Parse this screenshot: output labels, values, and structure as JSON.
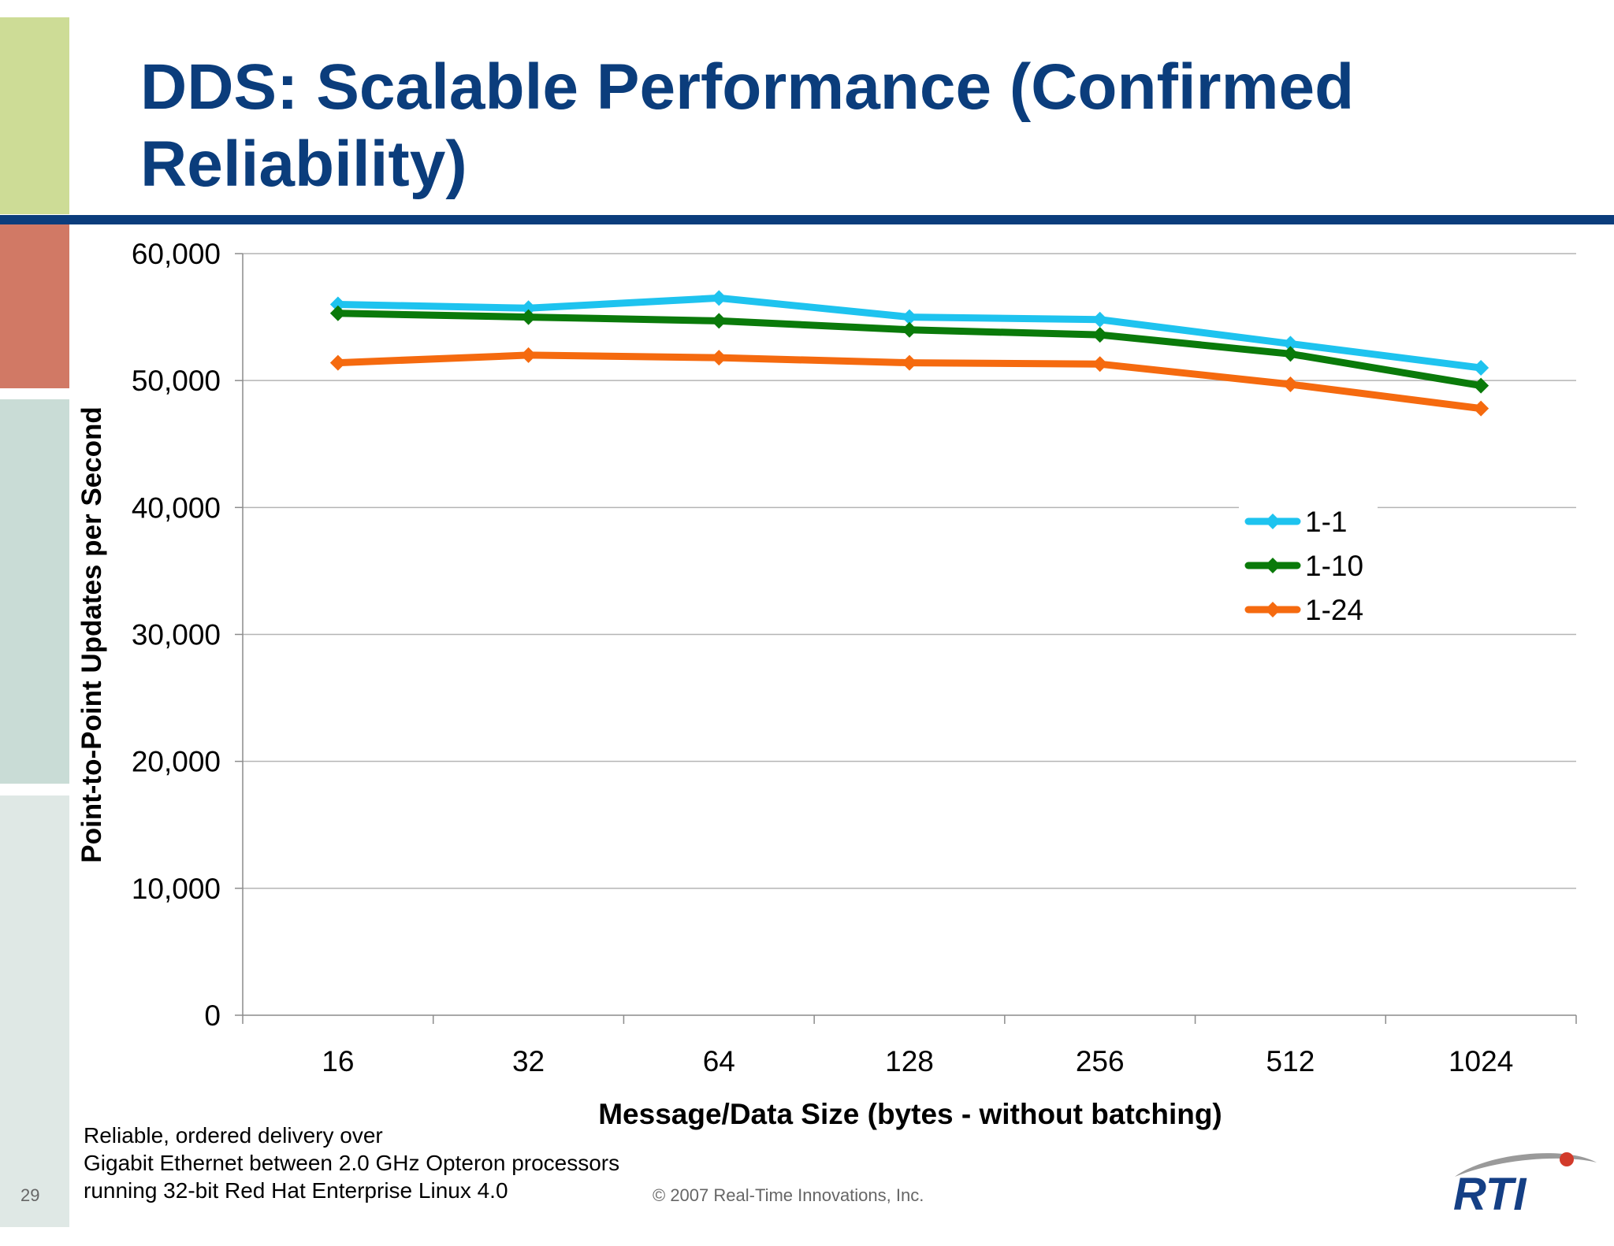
{
  "slide": {
    "title": "DDS: Scalable Performance (Confirmed Reliability)",
    "footnote_lines": [
      "Reliable, ordered delivery over",
      "Gigabit Ethernet between 2.0 GHz Opteron processors",
      "running 32-bit Red Hat Enterprise Linux 4.0"
    ],
    "copyright": "© 2007 Real-Time Innovations, Inc.",
    "page_number": "29",
    "logo_text": "RTI"
  },
  "colors": {
    "title": "#0b3d7c",
    "side_blocks": [
      "#cddc96",
      "#d17965",
      "#c9dcd6",
      "#dfe8e5"
    ]
  },
  "chart_data": {
    "type": "line",
    "categories": [
      "16",
      "32",
      "64",
      "128",
      "256",
      "512",
      "1024"
    ],
    "series": [
      {
        "name": "1-1",
        "color": "#1ec3ef",
        "values": [
          56000,
          55700,
          56500,
          55000,
          54800,
          52900,
          51000
        ]
      },
      {
        "name": "1-10",
        "color": "#0a7a0a",
        "values": [
          55300,
          55000,
          54700,
          54000,
          53600,
          52100,
          49600
        ]
      },
      {
        "name": "1-24",
        "color": "#f56a0f",
        "values": [
          51400,
          52000,
          51800,
          51400,
          51300,
          49700,
          47800
        ]
      }
    ],
    "xlabel": "Message/Data Size (bytes - without batching)",
    "ylabel": "Point-to-Point Updates per Second",
    "ylim": [
      0,
      60000
    ],
    "yticks": [
      0,
      10000,
      20000,
      30000,
      40000,
      50000,
      60000
    ],
    "ytick_labels": [
      "0",
      "10,000",
      "20,000",
      "30,000",
      "40,000",
      "50,000",
      "60,000"
    ],
    "grid": true,
    "legend_position": "right"
  }
}
